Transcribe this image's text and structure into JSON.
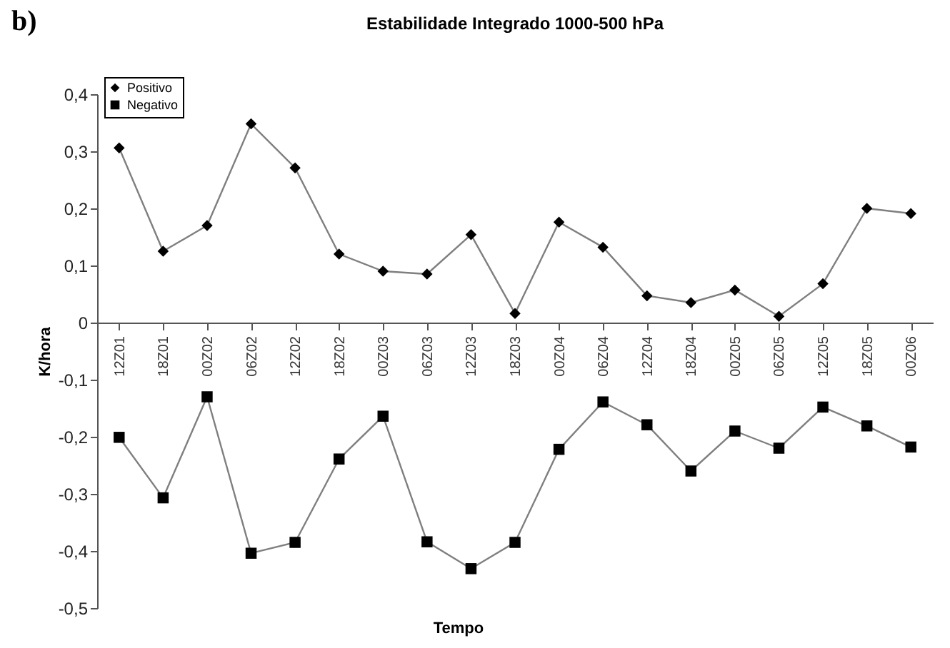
{
  "chart_data": {
    "type": "line",
    "title": "Estabilidade Integrado 1000-500 hPa",
    "xlabel": "Tempo",
    "ylabel": "K/hora",
    "annotations": [
      "b)"
    ],
    "categories": [
      "12Z01",
      "18Z01",
      "00Z02",
      "06Z02",
      "12Z02",
      "18Z02",
      "00Z03",
      "06Z03",
      "12Z03",
      "18Z03",
      "00Z04",
      "06Z04",
      "12Z04",
      "18Z04",
      "00Z05",
      "06Z05",
      "12Z05",
      "18Z05",
      "00Z06"
    ],
    "series": [
      {
        "name": "Positivo",
        "color": "#000000",
        "marker": "diamond",
        "values": [
          0.306,
          0.125,
          0.17,
          0.348,
          0.271,
          0.12,
          0.09,
          0.085,
          0.154,
          0.016,
          0.176,
          0.132,
          0.047,
          0.035,
          0.057,
          0.011,
          0.068,
          0.2,
          0.191
        ]
      },
      {
        "name": "Negativo",
        "color": "#000000",
        "marker": "square",
        "values": [
          -0.201,
          -0.307,
          -0.13,
          -0.404,
          -0.385,
          -0.239,
          -0.164,
          -0.384,
          -0.431,
          -0.385,
          -0.222,
          -0.139,
          -0.179,
          -0.26,
          -0.19,
          -0.22,
          -0.148,
          -0.181,
          -0.218
        ]
      }
    ],
    "ylim": [
      -0.5,
      0.4
    ],
    "yticks": [
      {
        "value": -0.5,
        "label": "-0,5"
      },
      {
        "value": -0.4,
        "label": "-0,4"
      },
      {
        "value": -0.3,
        "label": "-0,3"
      },
      {
        "value": -0.2,
        "label": "-0,2"
      },
      {
        "value": -0.1,
        "label": "-0,1"
      },
      0,
      {
        "value": 0.1,
        "label": "0,1"
      },
      {
        "value": 0.2,
        "label": "0,2"
      },
      {
        "value": 0.3,
        "label": "0,3"
      },
      {
        "value": 0.4,
        "label": "0,4"
      }
    ],
    "grid": false,
    "legend": "top left",
    "line_style": "solid"
  }
}
